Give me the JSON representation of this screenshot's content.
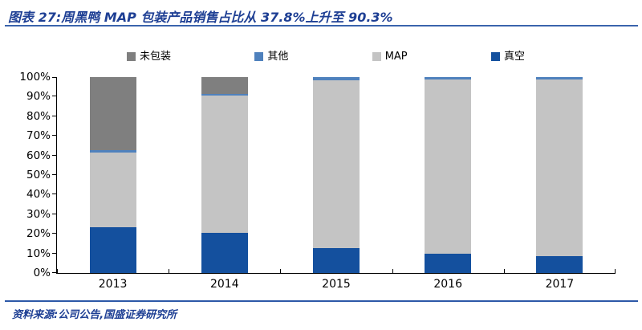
{
  "header": {
    "title": "图表 27:周黑鸭 MAP 包装产品销售占比从 37.8%上升至 90.3%"
  },
  "footer": {
    "source": "资料来源:公司公告,国盛证券研究所"
  },
  "colors": {
    "title_text": "#1E3F94",
    "rule_blue": "#2D59A8",
    "axis": "#000000"
  },
  "chart_data": {
    "type": "bar",
    "stacked": true,
    "title": "周黑鸭 MAP 包装产品销售占比从 37.8%上升至 90.3%",
    "categories": [
      "2013",
      "2014",
      "2015",
      "2016",
      "2017"
    ],
    "series": [
      {
        "name": "真空",
        "color": "#14509E",
        "values": [
          23.5,
          20.3,
          12.7,
          9.7,
          8.6
        ]
      },
      {
        "name": "MAP",
        "color": "#C4C4C4",
        "values": [
          37.8,
          70.2,
          85.8,
          89.1,
          90.3
        ]
      },
      {
        "name": "其他",
        "color": "#4F81BD",
        "values": [
          1.5,
          1.0,
          1.5,
          1.2,
          1.1
        ]
      },
      {
        "name": "未包装",
        "color": "#7F7F7F",
        "values": [
          37.2,
          8.5,
          0,
          0,
          0
        ]
      }
    ],
    "stack_order_note": "series listed bottom-to-top",
    "legend_order": [
      "未包装",
      "其他",
      "MAP",
      "真空"
    ],
    "legend_position": "top",
    "y_ticks": [
      "0%",
      "10%",
      "20%",
      "30%",
      "40%",
      "50%",
      "60%",
      "70%",
      "80%",
      "90%",
      "100%"
    ],
    "ylim": [
      0,
      100
    ],
    "grid": false,
    "xlabel": "",
    "ylabel": ""
  }
}
